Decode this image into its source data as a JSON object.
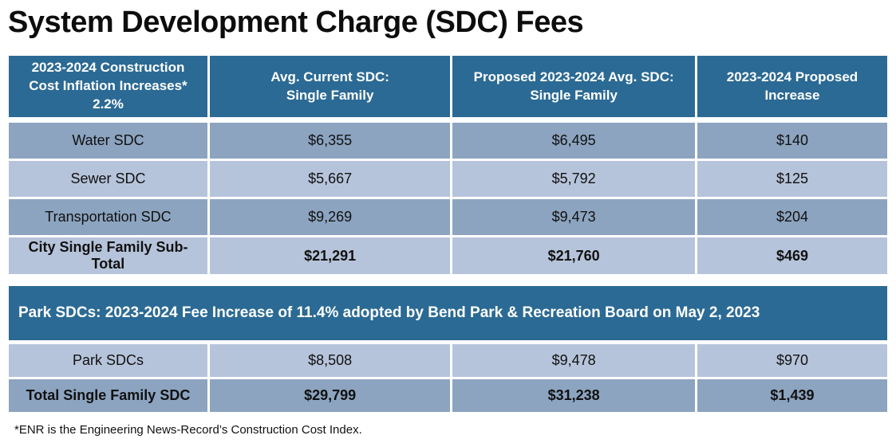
{
  "title": "System Development Charge (SDC) Fees",
  "colors": {
    "header_blue": "#2B6A94",
    "banner_blue": "#2B6A94",
    "row_band_dark": "#8CA4C0",
    "row_band_light": "#B6C4DB",
    "header_text": "#FFFFFF",
    "body_text": "#111111",
    "background": "#FFFFFF"
  },
  "main_table": {
    "headers": [
      {
        "lines": [
          "2023-2024 Construction",
          "Cost Inflation Increases*",
          "2.2%"
        ]
      },
      {
        "lines": [
          "Avg. Current SDC:",
          "Single Family"
        ]
      },
      {
        "lines": [
          "Proposed 2023-2024 Avg. SDC:",
          "Single Family"
        ]
      },
      {
        "lines": [
          "2023-2024  Proposed",
          "Increase"
        ]
      }
    ],
    "rows": [
      {
        "label": "Water SDC",
        "current": "$6,355",
        "proposed": "$6,495",
        "increase": "$140"
      },
      {
        "label": "Sewer SDC",
        "current": "$5,667",
        "proposed": "$5,792",
        "increase": "$125"
      },
      {
        "label": "Transportation SDC",
        "current": "$9,269",
        "proposed": "$9,473",
        "increase": "$204"
      },
      {
        "label": "City Single Family Sub-Total",
        "current": "$21,291",
        "proposed": "$21,760",
        "increase": "$469"
      }
    ]
  },
  "park_banner": "Park SDCs: 2023-2024 Fee Increase of 11.4% adopted by Bend Park & Recreation Board on May 2, 2023",
  "park_table": {
    "rows": [
      {
        "label": "Park SDCs",
        "current": "$8,508",
        "proposed": "$9,478",
        "increase": "$970"
      },
      {
        "label": "Total Single Family SDC",
        "current": "$29,799",
        "proposed": "$31,238",
        "increase": "$1,439"
      }
    ]
  },
  "footnote": "*ENR is the Engineering News-Record’s Construction Cost Index."
}
